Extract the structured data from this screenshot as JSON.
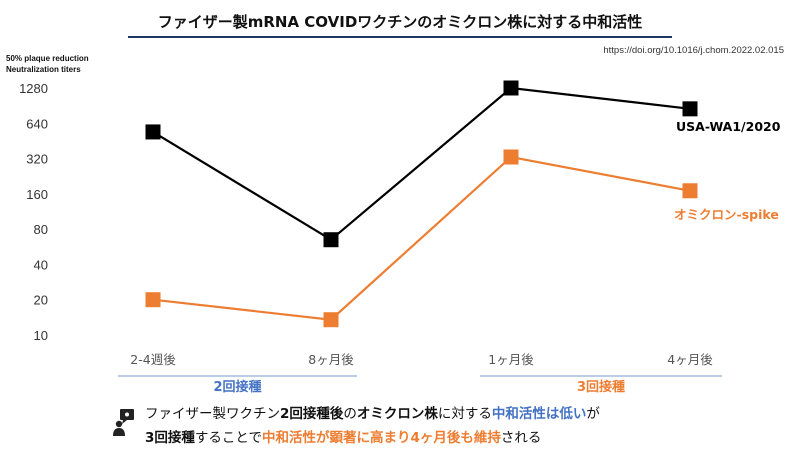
{
  "header": {
    "title": "ファイザー製mRNA COVIDワクチンのオミクロン株に対する中和活性",
    "doi": "https://doi.org/10.1016/j.chom.2022.02.015"
  },
  "chart_data": {
    "type": "line",
    "ylabel_line1": "50% plaque reduction",
    "ylabel_line2": "Neutralization titers",
    "y_scale": "log2",
    "yticks": [
      10,
      20,
      40,
      80,
      160,
      320,
      640,
      1280
    ],
    "categories": [
      "2-4週後",
      "8ヶ月後",
      "1ヶ月後",
      "4ヶ月後"
    ],
    "groups": [
      {
        "label": "2回接種",
        "categories": [
          "2-4週後",
          "8ヶ月後"
        ],
        "color": "#4472c4"
      },
      {
        "label": "3回接種",
        "categories": [
          "1ヶ月後",
          "4ヶ月後"
        ],
        "color": "#ed7d31"
      }
    ],
    "series": [
      {
        "name": "USA-WA1/2020",
        "values": [
          540,
          65,
          1280,
          850
        ],
        "color": "#000000",
        "marker": "square"
      },
      {
        "name": "オミクロン-spike",
        "values": [
          20,
          13.5,
          330,
          170
        ],
        "color": "#ed7d31",
        "marker": "square"
      }
    ],
    "grid": false,
    "legend": "inline-right"
  },
  "notes": {
    "line1_a": "ファイザー製ワクチン",
    "line1_b": "2回接種後",
    "line1_c": "の",
    "line1_d": "オミクロン株",
    "line1_e": "に対する",
    "line1_f": "中和活性は低い",
    "line1_g": "が",
    "line2_a": "3回接種",
    "line2_b": "することで",
    "line2_c": "中和活性が顕著に高まり4ヶ月後も維持",
    "line2_d": "される"
  },
  "icons": {
    "note_icon": "person-speech-icon"
  }
}
